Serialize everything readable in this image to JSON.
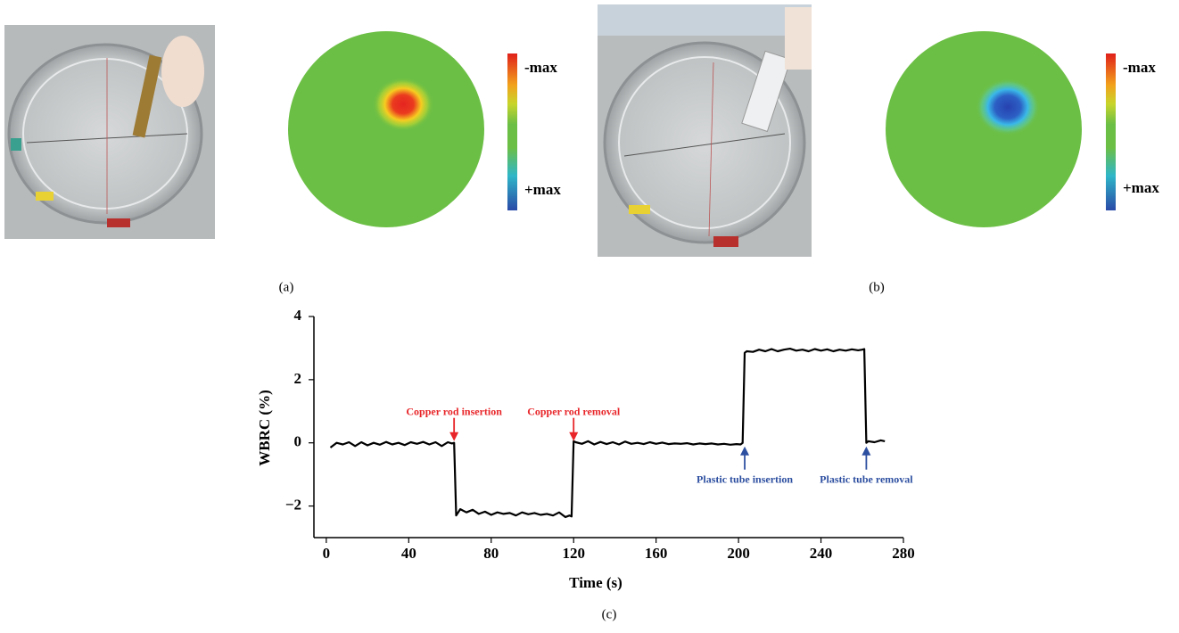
{
  "panels": {
    "a": {
      "colorbar": {
        "top_label": "-max",
        "bottom_label": "+max"
      },
      "caption": "(a)"
    },
    "b": {
      "colorbar": {
        "top_label": "-max",
        "bottom_label": "+max"
      },
      "caption": "(b)"
    },
    "c": {
      "caption": "(c)"
    }
  },
  "chart_data": {
    "type": "line",
    "x_label": "Time (s)",
    "y_label": "WBRC (%)",
    "color": "#000000",
    "x": [
      2,
      5,
      8,
      11,
      14,
      17,
      20,
      23,
      26,
      29,
      32,
      35,
      38,
      41,
      44,
      47,
      50,
      53,
      56,
      59,
      61,
      62,
      63,
      65,
      68,
      71,
      74,
      77,
      80,
      83,
      86,
      89,
      92,
      95,
      98,
      101,
      104,
      107,
      110,
      113,
      116,
      118,
      119,
      120,
      121,
      124,
      127,
      130,
      133,
      136,
      139,
      142,
      145,
      148,
      151,
      154,
      157,
      160,
      163,
      166,
      169,
      172,
      175,
      178,
      181,
      184,
      187,
      190,
      193,
      196,
      199,
      201,
      202,
      203,
      204,
      207,
      210,
      213,
      216,
      219,
      222,
      225,
      228,
      231,
      234,
      237,
      240,
      243,
      246,
      249,
      252,
      255,
      258,
      260,
      261,
      262,
      263,
      266,
      269,
      271
    ],
    "values": [
      -0.15,
      0,
      -0.05,
      0.02,
      -0.1,
      0.02,
      -0.08,
      0,
      -0.06,
      0.03,
      -0.05,
      0,
      -0.07,
      0.02,
      -0.03,
      0.03,
      -0.05,
      0.02,
      -0.1,
      0.02,
      -0.02,
      0,
      -2.3,
      -2.1,
      -2.2,
      -2.12,
      -2.25,
      -2.18,
      -2.28,
      -2.2,
      -2.25,
      -2.22,
      -2.3,
      -2.2,
      -2.26,
      -2.22,
      -2.28,
      -2.25,
      -2.3,
      -2.2,
      -2.35,
      -2.3,
      -2.33,
      0.05,
      0.02,
      -0.03,
      0.05,
      -0.05,
      0.03,
      -0.04,
      0.02,
      -0.05,
      0.04,
      -0.03,
      0,
      -0.04,
      0.02,
      -0.03,
      0.01,
      -0.04,
      -0.02,
      -0.03,
      -0.01,
      -0.05,
      -0.02,
      -0.04,
      -0.02,
      -0.05,
      -0.03,
      -0.06,
      -0.04,
      -0.05,
      0,
      2.85,
      2.9,
      2.88,
      2.95,
      2.9,
      2.97,
      2.9,
      2.95,
      2.98,
      2.92,
      2.95,
      2.9,
      2.97,
      2.92,
      2.96,
      2.9,
      2.95,
      2.92,
      2.96,
      2.93,
      2.95,
      2.97,
      0,
      0.05,
      0.02,
      0.08,
      0.05
    ],
    "xlim": [
      -6,
      280
    ],
    "xticks": [
      0,
      40,
      80,
      120,
      160,
      200,
      240,
      280
    ],
    "ylim": [
      -3,
      4
    ],
    "yticks": [
      {
        "value": -2,
        "label": "−2"
      },
      0,
      2,
      4
    ],
    "grid": false,
    "annotations": [
      {
        "text": "Copper rod insertion",
        "x": 62,
        "color": "#e8262a",
        "position": "above"
      },
      {
        "text": "Copper rod removal",
        "x": 120,
        "color": "#e8262a",
        "position": "above"
      },
      {
        "text": "Plastic tube insertion",
        "x": 203,
        "color": "#2d4fa0",
        "position": "below"
      },
      {
        "text": "Plastic tube removal",
        "x": 262,
        "color": "#2d4fa0",
        "position": "below"
      }
    ]
  }
}
